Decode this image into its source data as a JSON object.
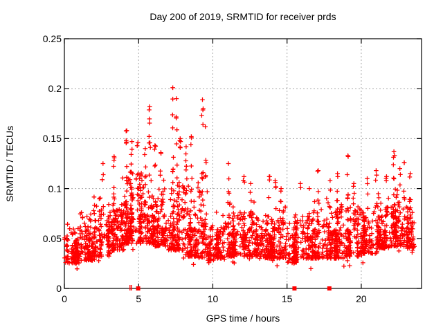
{
  "chart_data": {
    "type": "scatter",
    "title": "Day 200 of 2019, SRMTID for receiver prds",
    "xlabel": "GPS time / hours",
    "ylabel": "SRMTID / TECUs",
    "xlim": [
      0,
      24.06
    ],
    "ylim": [
      0,
      0.25
    ],
    "xticks": [
      0,
      5,
      10,
      15,
      20
    ],
    "yticks": [
      0,
      0.05,
      0.1,
      0.15,
      0.2,
      0.25
    ],
    "ytick_labels": [
      "0",
      "0.05",
      "0.1",
      "0.15",
      "0.2",
      "0.25"
    ],
    "grid": true,
    "legend": "none",
    "marker": {
      "shape": "plus",
      "color": "#ff0000",
      "size": 7
    },
    "colors": {
      "points": "#ff0000",
      "grid": "#a6a6a6",
      "axis": "#000000",
      "background": "#ffffff"
    },
    "seed": 1337,
    "approx_point_count": 2900,
    "density_bins": [
      {
        "x0": 0.0,
        "x1": 1.0,
        "n": 115,
        "lo": 0.025,
        "hi": 0.075
      },
      {
        "x0": 1.0,
        "x1": 2.0,
        "n": 115,
        "lo": 0.028,
        "hi": 0.082
      },
      {
        "x0": 2.0,
        "x1": 3.0,
        "n": 120,
        "lo": 0.032,
        "hi": 0.1
      },
      {
        "x0": 3.0,
        "x1": 4.0,
        "n": 125,
        "lo": 0.038,
        "hi": 0.115
      },
      {
        "x0": 4.0,
        "x1": 5.0,
        "n": 135,
        "lo": 0.045,
        "hi": 0.128
      },
      {
        "x0": 5.0,
        "x1": 6.0,
        "n": 130,
        "lo": 0.045,
        "hi": 0.125
      },
      {
        "x0": 6.0,
        "x1": 7.0,
        "n": 125,
        "lo": 0.042,
        "hi": 0.118
      },
      {
        "x0": 7.0,
        "x1": 8.0,
        "n": 130,
        "lo": 0.038,
        "hi": 0.128
      },
      {
        "x0": 8.0,
        "x1": 9.0,
        "n": 120,
        "lo": 0.032,
        "hi": 0.118
      },
      {
        "x0": 9.0,
        "x1": 9.6,
        "n": 70,
        "lo": 0.03,
        "hi": 0.112
      },
      {
        "x0": 9.6,
        "x1": 10.2,
        "n": 45,
        "lo": 0.028,
        "hi": 0.072
      },
      {
        "x0": 10.2,
        "x1": 11.0,
        "n": 85,
        "lo": 0.03,
        "hi": 0.08
      },
      {
        "x0": 11.0,
        "x1": 12.0,
        "n": 115,
        "lo": 0.032,
        "hi": 0.09
      },
      {
        "x0": 12.0,
        "x1": 13.0,
        "n": 115,
        "lo": 0.032,
        "hi": 0.095
      },
      {
        "x0": 13.0,
        "x1": 14.0,
        "n": 115,
        "lo": 0.03,
        "hi": 0.09
      },
      {
        "x0": 14.0,
        "x1": 15.0,
        "n": 110,
        "lo": 0.03,
        "hi": 0.095
      },
      {
        "x0": 15.0,
        "x1": 16.0,
        "n": 110,
        "lo": 0.025,
        "hi": 0.085
      },
      {
        "x0": 16.0,
        "x1": 17.0,
        "n": 110,
        "lo": 0.03,
        "hi": 0.09
      },
      {
        "x0": 17.0,
        "x1": 18.0,
        "n": 110,
        "lo": 0.03,
        "hi": 0.095
      },
      {
        "x0": 18.0,
        "x1": 19.0,
        "n": 110,
        "lo": 0.03,
        "hi": 0.09
      },
      {
        "x0": 19.0,
        "x1": 20.0,
        "n": 110,
        "lo": 0.032,
        "hi": 0.1
      },
      {
        "x0": 20.0,
        "x1": 21.0,
        "n": 110,
        "lo": 0.035,
        "hi": 0.095
      },
      {
        "x0": 21.0,
        "x1": 22.0,
        "n": 115,
        "lo": 0.04,
        "hi": 0.105
      },
      {
        "x0": 22.0,
        "x1": 23.0,
        "n": 120,
        "lo": 0.042,
        "hi": 0.11
      },
      {
        "x0": 23.0,
        "x1": 23.6,
        "n": 70,
        "lo": 0.04,
        "hi": 0.098
      }
    ],
    "spike_columns": [
      {
        "x": 2.6,
        "top": 0.125,
        "n": 4
      },
      {
        "x": 3.35,
        "top": 0.132,
        "n": 5
      },
      {
        "x": 4.2,
        "top": 0.158,
        "n": 7
      },
      {
        "x": 4.55,
        "top": 0.147,
        "n": 6
      },
      {
        "x": 4.95,
        "top": 0.146,
        "n": 6
      },
      {
        "x": 5.45,
        "top": 0.14,
        "n": 5
      },
      {
        "x": 5.75,
        "top": 0.182,
        "n": 8
      },
      {
        "x": 6.1,
        "top": 0.143,
        "n": 5
      },
      {
        "x": 6.5,
        "top": 0.136,
        "n": 5
      },
      {
        "x": 7.3,
        "top": 0.201,
        "n": 8
      },
      {
        "x": 7.55,
        "top": 0.19,
        "n": 5
      },
      {
        "x": 7.8,
        "top": 0.15,
        "n": 4
      },
      {
        "x": 8.2,
        "top": 0.142,
        "n": 5
      },
      {
        "x": 8.55,
        "top": 0.152,
        "n": 6
      },
      {
        "x": 9.3,
        "top": 0.189,
        "n": 8
      },
      {
        "x": 9.5,
        "top": 0.162,
        "n": 4
      },
      {
        "x": 11.05,
        "top": 0.125,
        "n": 4
      },
      {
        "x": 12.1,
        "top": 0.112,
        "n": 4
      },
      {
        "x": 12.55,
        "top": 0.105,
        "n": 3
      },
      {
        "x": 13.8,
        "top": 0.112,
        "n": 3
      },
      {
        "x": 14.2,
        "top": 0.108,
        "n": 3
      },
      {
        "x": 14.6,
        "top": 0.1,
        "n": 3
      },
      {
        "x": 15.9,
        "top": 0.105,
        "n": 3
      },
      {
        "x": 16.5,
        "top": 0.1,
        "n": 3
      },
      {
        "x": 17.1,
        "top": 0.118,
        "n": 4
      },
      {
        "x": 17.9,
        "top": 0.108,
        "n": 3
      },
      {
        "x": 18.4,
        "top": 0.115,
        "n": 4
      },
      {
        "x": 19.1,
        "top": 0.133,
        "n": 4
      },
      {
        "x": 19.5,
        "top": 0.105,
        "n": 3
      },
      {
        "x": 20.4,
        "top": 0.11,
        "n": 3
      },
      {
        "x": 21.0,
        "top": 0.118,
        "n": 4
      },
      {
        "x": 21.7,
        "top": 0.112,
        "n": 3
      },
      {
        "x": 22.2,
        "top": 0.137,
        "n": 6
      },
      {
        "x": 22.6,
        "top": 0.12,
        "n": 4
      },
      {
        "x": 22.9,
        "top": 0.126,
        "n": 4
      },
      {
        "x": 23.3,
        "top": 0.115,
        "n": 3
      }
    ],
    "zero_markers": {
      "squares": [
        4.97,
        15.5,
        17.85
      ],
      "ticks": [
        4.42,
        4.52
      ]
    }
  }
}
